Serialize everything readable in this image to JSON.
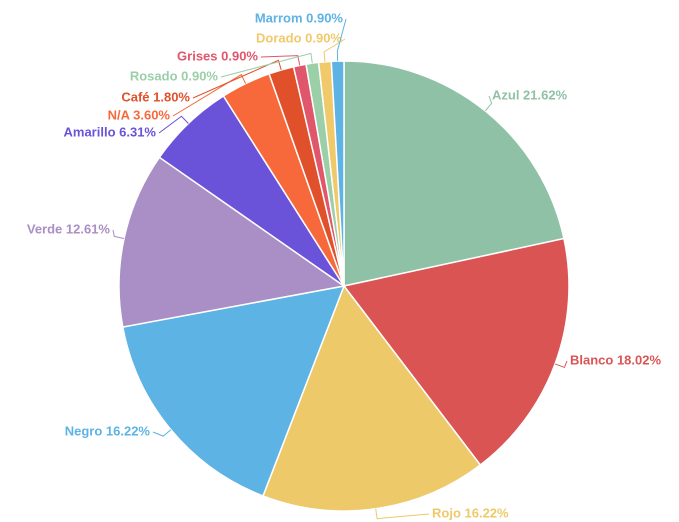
{
  "chart_data": {
    "type": "pie",
    "categories": [
      "Azul",
      "Blanco",
      "Rojo",
      "Negro",
      "Verde",
      "Amarillo",
      "N/A",
      "Café",
      "Grises",
      "Rosado",
      "Dorado",
      "Marrom"
    ],
    "values": [
      21.62,
      18.02,
      16.22,
      16.22,
      12.61,
      6.31,
      3.6,
      1.8,
      0.9,
      0.9,
      0.9,
      0.9
    ],
    "value_labels": [
      "Azul 21.62%",
      "Blanco 18.02%",
      "Rojo 16.22%",
      "Negro 16.22%",
      "Verde 12.61%",
      "Amarillo 6.31%",
      "N/A 3.60%",
      "Café 1.80%",
      "Grises 0.90%",
      "Rosado 0.90%",
      "Dorado 0.90%",
      "Marrom 0.90%"
    ],
    "colors": [
      "#8fc1a6",
      "#db5454",
      "#edc96a",
      "#5db3e3",
      "#a98fc5",
      "#6a52d9",
      "#f7693b",
      "#e0502a",
      "#e0566a",
      "#9bcfa8",
      "#f0c96a",
      "#5db3e3"
    ]
  }
}
